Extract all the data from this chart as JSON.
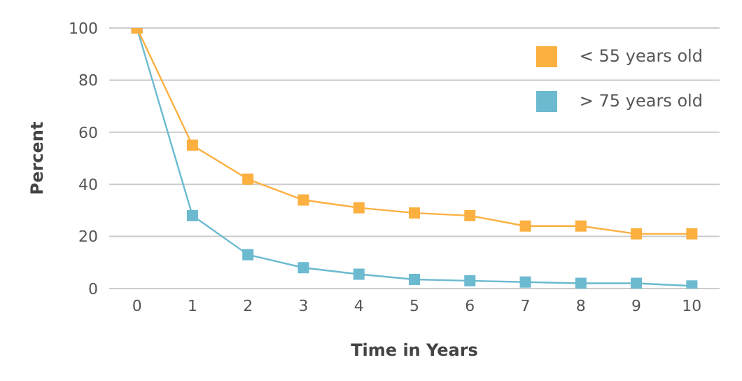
{
  "chart_data": {
    "type": "line",
    "xlabel": "Time in Years",
    "ylabel": "Percent",
    "x": [
      0,
      1,
      2,
      3,
      4,
      5,
      6,
      7,
      8,
      9,
      10
    ],
    "xlim": [
      -0.5,
      10.5
    ],
    "xticks": [
      0,
      1,
      2,
      3,
      4,
      5,
      6,
      7,
      8,
      9,
      10
    ],
    "ylim": [
      0,
      100
    ],
    "yticks": [
      0,
      20,
      40,
      60,
      80,
      100
    ],
    "grid": "y",
    "legend": "top right",
    "marker": "square",
    "series": [
      {
        "name": "< 55 years old",
        "color": "#fbb040",
        "values": [
          100,
          55,
          42,
          34,
          31,
          29,
          28,
          24,
          24,
          21,
          21
        ]
      },
      {
        "name": "> 75 years old",
        "color": "#6bbad0",
        "values": [
          100,
          28,
          13,
          8,
          5.5,
          3.5,
          3,
          2.5,
          2,
          2,
          1
        ]
      }
    ]
  }
}
